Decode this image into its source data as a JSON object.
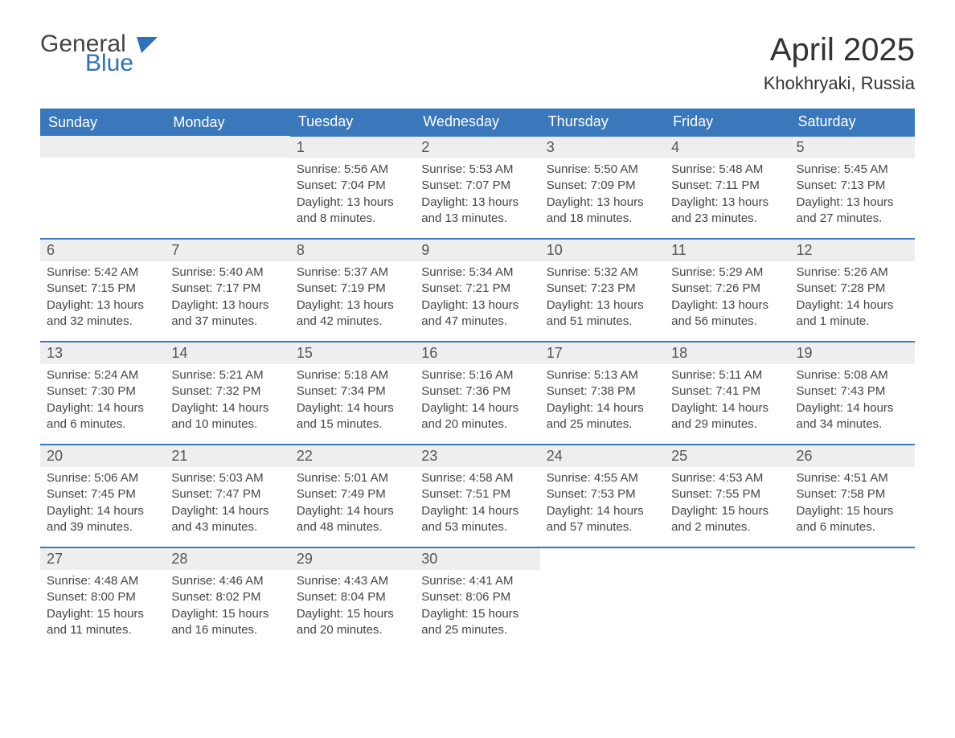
{
  "branding": {
    "logo_word1": "General",
    "logo_word2": "Blue",
    "logo_color1": "#444444",
    "logo_color2": "#2f71b8",
    "flag_color": "#2f71b8"
  },
  "header": {
    "month_title": "April 2025",
    "location": "Khokhryaki, Russia"
  },
  "calendar": {
    "type": "table",
    "header_bg": "#3a78bb",
    "header_text_color": "#ffffff",
    "daynum_bg": "#eeeeee",
    "row_border_color": "#3a78bb",
    "text_color": "#444444",
    "background_color": "#ffffff",
    "columns": [
      "Sunday",
      "Monday",
      "Tuesday",
      "Wednesday",
      "Thursday",
      "Friday",
      "Saturday"
    ],
    "weeks": [
      [
        {
          "day": "",
          "sunrise": "",
          "sunset": "",
          "daylight": ""
        },
        {
          "day": "",
          "sunrise": "",
          "sunset": "",
          "daylight": ""
        },
        {
          "day": "1",
          "sunrise": "Sunrise: 5:56 AM",
          "sunset": "Sunset: 7:04 PM",
          "daylight": "Daylight: 13 hours and 8 minutes."
        },
        {
          "day": "2",
          "sunrise": "Sunrise: 5:53 AM",
          "sunset": "Sunset: 7:07 PM",
          "daylight": "Daylight: 13 hours and 13 minutes."
        },
        {
          "day": "3",
          "sunrise": "Sunrise: 5:50 AM",
          "sunset": "Sunset: 7:09 PM",
          "daylight": "Daylight: 13 hours and 18 minutes."
        },
        {
          "day": "4",
          "sunrise": "Sunrise: 5:48 AM",
          "sunset": "Sunset: 7:11 PM",
          "daylight": "Daylight: 13 hours and 23 minutes."
        },
        {
          "day": "5",
          "sunrise": "Sunrise: 5:45 AM",
          "sunset": "Sunset: 7:13 PM",
          "daylight": "Daylight: 13 hours and 27 minutes."
        }
      ],
      [
        {
          "day": "6",
          "sunrise": "Sunrise: 5:42 AM",
          "sunset": "Sunset: 7:15 PM",
          "daylight": "Daylight: 13 hours and 32 minutes."
        },
        {
          "day": "7",
          "sunrise": "Sunrise: 5:40 AM",
          "sunset": "Sunset: 7:17 PM",
          "daylight": "Daylight: 13 hours and 37 minutes."
        },
        {
          "day": "8",
          "sunrise": "Sunrise: 5:37 AM",
          "sunset": "Sunset: 7:19 PM",
          "daylight": "Daylight: 13 hours and 42 minutes."
        },
        {
          "day": "9",
          "sunrise": "Sunrise: 5:34 AM",
          "sunset": "Sunset: 7:21 PM",
          "daylight": "Daylight: 13 hours and 47 minutes."
        },
        {
          "day": "10",
          "sunrise": "Sunrise: 5:32 AM",
          "sunset": "Sunset: 7:23 PM",
          "daylight": "Daylight: 13 hours and 51 minutes."
        },
        {
          "day": "11",
          "sunrise": "Sunrise: 5:29 AM",
          "sunset": "Sunset: 7:26 PM",
          "daylight": "Daylight: 13 hours and 56 minutes."
        },
        {
          "day": "12",
          "sunrise": "Sunrise: 5:26 AM",
          "sunset": "Sunset: 7:28 PM",
          "daylight": "Daylight: 14 hours and 1 minute."
        }
      ],
      [
        {
          "day": "13",
          "sunrise": "Sunrise: 5:24 AM",
          "sunset": "Sunset: 7:30 PM",
          "daylight": "Daylight: 14 hours and 6 minutes."
        },
        {
          "day": "14",
          "sunrise": "Sunrise: 5:21 AM",
          "sunset": "Sunset: 7:32 PM",
          "daylight": "Daylight: 14 hours and 10 minutes."
        },
        {
          "day": "15",
          "sunrise": "Sunrise: 5:18 AM",
          "sunset": "Sunset: 7:34 PM",
          "daylight": "Daylight: 14 hours and 15 minutes."
        },
        {
          "day": "16",
          "sunrise": "Sunrise: 5:16 AM",
          "sunset": "Sunset: 7:36 PM",
          "daylight": "Daylight: 14 hours and 20 minutes."
        },
        {
          "day": "17",
          "sunrise": "Sunrise: 5:13 AM",
          "sunset": "Sunset: 7:38 PM",
          "daylight": "Daylight: 14 hours and 25 minutes."
        },
        {
          "day": "18",
          "sunrise": "Sunrise: 5:11 AM",
          "sunset": "Sunset: 7:41 PM",
          "daylight": "Daylight: 14 hours and 29 minutes."
        },
        {
          "day": "19",
          "sunrise": "Sunrise: 5:08 AM",
          "sunset": "Sunset: 7:43 PM",
          "daylight": "Daylight: 14 hours and 34 minutes."
        }
      ],
      [
        {
          "day": "20",
          "sunrise": "Sunrise: 5:06 AM",
          "sunset": "Sunset: 7:45 PM",
          "daylight": "Daylight: 14 hours and 39 minutes."
        },
        {
          "day": "21",
          "sunrise": "Sunrise: 5:03 AM",
          "sunset": "Sunset: 7:47 PM",
          "daylight": "Daylight: 14 hours and 43 minutes."
        },
        {
          "day": "22",
          "sunrise": "Sunrise: 5:01 AM",
          "sunset": "Sunset: 7:49 PM",
          "daylight": "Daylight: 14 hours and 48 minutes."
        },
        {
          "day": "23",
          "sunrise": "Sunrise: 4:58 AM",
          "sunset": "Sunset: 7:51 PM",
          "daylight": "Daylight: 14 hours and 53 minutes."
        },
        {
          "day": "24",
          "sunrise": "Sunrise: 4:55 AM",
          "sunset": "Sunset: 7:53 PM",
          "daylight": "Daylight: 14 hours and 57 minutes."
        },
        {
          "day": "25",
          "sunrise": "Sunrise: 4:53 AM",
          "sunset": "Sunset: 7:55 PM",
          "daylight": "Daylight: 15 hours and 2 minutes."
        },
        {
          "day": "26",
          "sunrise": "Sunrise: 4:51 AM",
          "sunset": "Sunset: 7:58 PM",
          "daylight": "Daylight: 15 hours and 6 minutes."
        }
      ],
      [
        {
          "day": "27",
          "sunrise": "Sunrise: 4:48 AM",
          "sunset": "Sunset: 8:00 PM",
          "daylight": "Daylight: 15 hours and 11 minutes."
        },
        {
          "day": "28",
          "sunrise": "Sunrise: 4:46 AM",
          "sunset": "Sunset: 8:02 PM",
          "daylight": "Daylight: 15 hours and 16 minutes."
        },
        {
          "day": "29",
          "sunrise": "Sunrise: 4:43 AM",
          "sunset": "Sunset: 8:04 PM",
          "daylight": "Daylight: 15 hours and 20 minutes."
        },
        {
          "day": "30",
          "sunrise": "Sunrise: 4:41 AM",
          "sunset": "Sunset: 8:06 PM",
          "daylight": "Daylight: 15 hours and 25 minutes."
        },
        {
          "day": "",
          "sunrise": "",
          "sunset": "",
          "daylight": ""
        },
        {
          "day": "",
          "sunrise": "",
          "sunset": "",
          "daylight": ""
        },
        {
          "day": "",
          "sunrise": "",
          "sunset": "",
          "daylight": ""
        }
      ]
    ]
  }
}
